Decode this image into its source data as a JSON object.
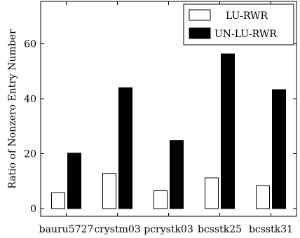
{
  "chart_data": {
    "type": "bar",
    "categories": [
      "bauru5727",
      "crystm03",
      "pcrystk03",
      "bcsstk25",
      "bcsstk31"
    ],
    "series": [
      {
        "name": "LU-RWR",
        "values": [
          5.8,
          12.8,
          6.5,
          11.2,
          8.3
        ],
        "color": "#ffffff"
      },
      {
        "name": "UN-LU-RWR",
        "values": [
          20.2,
          44.0,
          24.8,
          56.3,
          43.3
        ],
        "color": "#000000"
      }
    ],
    "title": "",
    "xlabel": "",
    "ylabel": "Ratio of Nonzero Entry Number",
    "ylim": [
      0,
      75
    ],
    "yticks": [
      0,
      20,
      40,
      60
    ],
    "grid": false,
    "legend_position": "top-right"
  }
}
